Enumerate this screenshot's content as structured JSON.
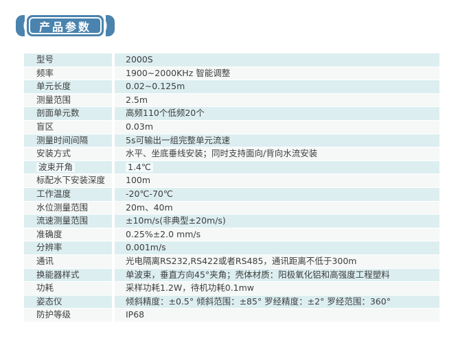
{
  "page": {
    "badge_label": "产品参数"
  },
  "colors": {
    "badge_blue": "#4a83ae",
    "row_teal": "#dceef0",
    "row_light": "#f5f8f7",
    "text": "#3d3d3d"
  },
  "table": {
    "rows": [
      {
        "label": "型号",
        "value": "2000S"
      },
      {
        "label": "频率",
        "value": "1900~2000KHz 智能调整"
      },
      {
        "label": "单元长度",
        "value": "0.02~0.125m"
      },
      {
        "label": "测量范围",
        "value": "2.5m"
      },
      {
        "label": "剖面单元数",
        "value": "高频110个低频20个"
      },
      {
        "label": "盲区",
        "value": "0.03m"
      },
      {
        "label": "测量时间间隔",
        "value": "5s可输出一组完整单元流速"
      },
      {
        "label": "安装方式",
        "value": "水平、坐底垂线安装；同时支持面向/背向水流安装"
      },
      {
        "label": "波束开角",
        "value": "1.4℃",
        "highlighted": true
      },
      {
        "label": "标配水下安装深度",
        "value": "100m"
      },
      {
        "label": "工作温度",
        "value": "-20℃-70℃"
      },
      {
        "label": "水位测量范围",
        "value": "20m、40m"
      },
      {
        "label": "流速测量范围",
        "value": "±10m/s(非典型±20m/s)"
      },
      {
        "label": "准确度",
        "value": "0.25%±2.0 mm/s"
      },
      {
        "label": "分辨率",
        "value": "0.001m/s"
      },
      {
        "label": "通讯",
        "value": "光电隔离RS232,RS422或者RS485，通讯距离不低于300m"
      },
      {
        "label": "换能器样式",
        "value": "单波束，垂直方向45°夹角；壳体材质：阳极氧化铝和高强度工程塑料"
      },
      {
        "label": "功耗",
        "value": "采样功耗1.2W，待机功耗0.1mw"
      },
      {
        "label": "姿态仪",
        "value": "倾斜精度：±0.5° 倾斜范围：±85° 罗经精度：±2° 罗经范围：360°"
      },
      {
        "label": "防护等级",
        "value": "IP68"
      }
    ]
  }
}
